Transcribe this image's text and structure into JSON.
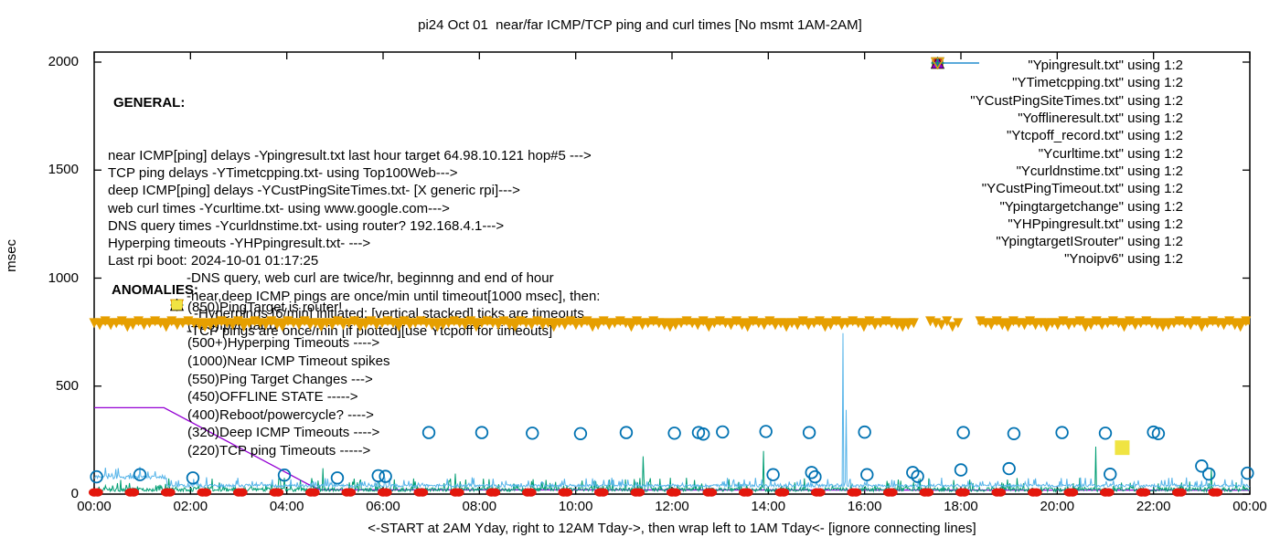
{
  "colors": {
    "purple": "#9400d3",
    "teal": "#009e73",
    "sky": "#56b4e9",
    "orange": "#e69f00",
    "yellow": "#f0e442",
    "blue": "#0072b2",
    "red": "#e3170d",
    "black": "#000000"
  },
  "general": {
    "header": "GENERAL:",
    "lines": [
      {
        "text": "near ICMP[ping] delays -Ypingresult.txt last hour target 64.98.10.121 hop#5 --->",
        "indent": 0
      },
      {
        "text": "TCP ping delays -YTimetcpping.txt- using Top100Web--->",
        "indent": 0
      },
      {
        "text": "deep ICMP[ping] delays -YCustPingSiteTimes.txt- [X generic rpi]--->",
        "indent": 0
      },
      {
        "text": "web curl times -Ycurltime.txt- using www.google.com--->",
        "indent": 0
      },
      {
        "text": "DNS query times -Ycurldnstime.txt- using router? 192.168.4.1--->",
        "indent": 0
      },
      {
        "text": "Hyperping timeouts -YHPpingresult.txt- --->",
        "indent": 0
      },
      {
        "text": "Last rpi boot: 2024-10-01 01:17:25",
        "indent": 0
      },
      {
        "text": "-DNS query, web curl are twice/hr, beginnng and end of hour",
        "indent": 1
      },
      {
        "text": "-near,deep ICMP pings are once/min until timeout[1000 msec], then:",
        "indent": 1
      },
      {
        "text": "-Hyperpings [6/min] initiated; [vertical stacked] ticks are timeouts",
        "indent": 2
      },
      {
        "text": "-TCP pings are once/min [if plotted][use Ytcpoff for timeouts]",
        "indent": 1
      }
    ]
  },
  "anomalies": {
    "header": "ANOMALIES:",
    "rows": [
      {
        "marker": "tridown-open",
        "color": "#56b4e9",
        "text": "(850)PingTarget is router!"
      },
      {
        "marker": "tridown-open",
        "color": "#e69f00",
        "text": "(785)Ipv6 fail'd"
      },
      {
        "marker": "plus",
        "color": "#009e73",
        "text": "(500+)Hyperping Timeouts ---->"
      },
      {
        "marker": "none",
        "color": "#000000",
        "text": "(1000)Near ICMP Timeout spikes"
      },
      {
        "marker": "triup-fill",
        "color": "#9400d3",
        "text": "(550)Ping Target Changes --->"
      },
      {
        "marker": "square-open",
        "color": "#e69f00",
        "text": "(450)OFFLINE STATE ----->"
      },
      {
        "marker": "none",
        "color": "#000000",
        "text": "(400)Reboot/powercycle? ---->"
      },
      {
        "marker": "triup-open",
        "color": "#000000",
        "text": "(320)Deep ICMP Timeouts ---->"
      },
      {
        "marker": "square-fill",
        "color": "#f0e442",
        "text": "(220)TCP ping Timeouts ----->"
      }
    ]
  },
  "legend": {
    "entries": [
      {
        "label": "\"Ypingresult.txt\" using 1:2",
        "marker": "line",
        "color": "#9400d3"
      },
      {
        "label": "\"YTimetcpping.txt\" using 1:2",
        "marker": "line",
        "color": "#009e73"
      },
      {
        "label": "\"YCustPingSiteTimes.txt\" using 1:2",
        "marker": "line",
        "color": "#56b4e9"
      },
      {
        "label": "\"Yofflineresult.txt\" using 1:2",
        "marker": "square-open",
        "color": "#e69f00"
      },
      {
        "label": "\"Ytcpoff_record.txt\" using 1:2",
        "marker": "square-fill",
        "color": "#f0e442"
      },
      {
        "label": "\"Ycurltime.txt\" using 1:2",
        "marker": "circle-open",
        "color": "#0072b2"
      },
      {
        "label": "\"Ycurldnstime.txt\" using 1:2",
        "marker": "circle-fill",
        "color": "#e3170d"
      },
      {
        "label": "\"YCustPingTimeout.txt\" using 1:2",
        "marker": "triup-open",
        "color": "#000000"
      },
      {
        "label": "\"Ypingtargetchange\" using 1:2",
        "marker": "triup-fill",
        "color": "#9400d3"
      },
      {
        "label": "\"YHPpingresult.txt\" using 1:2",
        "marker": "plus",
        "color": "#009e73"
      },
      {
        "label": "\"YpingtargetISrouter\" using 1:2",
        "marker": "tridown-open",
        "color": "#56b4e9"
      },
      {
        "label": "\"Ynoipv6\" using 1:2",
        "marker": "tridown-open",
        "color": "#e69f00"
      }
    ]
  },
  "chart_data": {
    "type": "line",
    "title": "pi24 Oct 01  near/far ICMP/TCP ping and curl times [No msmt 1AM-2AM]",
    "ylabel": "msec",
    "xlabel_note": "<-START at 2AM Yday, right to 12AM Tday->, then wrap left to 1AM Tday<- [ignore connecting lines]",
    "x_ticks": [
      "00:00",
      "02:00",
      "04:00",
      "06:00",
      "08:00",
      "10:00",
      "12:00",
      "14:00",
      "16:00",
      "18:00",
      "20:00",
      "22:00",
      "00:00"
    ],
    "y_ticks": [
      0,
      500,
      1000,
      1500,
      2000
    ],
    "x_range_hours": [
      0,
      24
    ],
    "ylim": [
      0,
      2000
    ],
    "grid": false,
    "legend_position": "top-right-inside",
    "noise_seed": 1234567,
    "series": [
      {
        "name": "Ypingresult.txt",
        "kind": "line",
        "color": "#9400d3",
        "points": [
          [
            0,
            400
          ],
          [
            1.45,
            400
          ],
          [
            4.45,
            45
          ],
          [
            4.7,
            20
          ],
          [
            24,
            18
          ]
        ]
      },
      {
        "name": "YTimetcpping.txt",
        "kind": "noisy-line",
        "color": "#009e73",
        "baseline": 12,
        "noise_amp": 65,
        "spikes": [
          [
            4.75,
            120
          ],
          [
            7.5,
            95
          ],
          [
            11.4,
            175
          ],
          [
            13.9,
            200
          ],
          [
            20.8,
            220
          ],
          [
            23.2,
            120
          ]
        ]
      },
      {
        "name": "YCustPingSiteTimes.txt",
        "kind": "noisy-line",
        "color": "#56b4e9",
        "baseline": 33,
        "noise_amp": 45,
        "elevated_start": {
          "until_hour": 1.5,
          "baseline": 70,
          "noise_amp": 60
        },
        "spikes": [
          [
            15.55,
            745
          ],
          [
            15.62,
            390
          ],
          [
            15.68,
            60
          ]
        ]
      },
      {
        "name": "Ycurltime.txt",
        "kind": "scatter-circle-open",
        "color": "#0072b2",
        "points": [
          [
            0.05,
            80
          ],
          [
            0.95,
            90
          ],
          [
            2.05,
            75
          ],
          [
            3.95,
            88
          ],
          [
            5.05,
            75
          ],
          [
            5.9,
            85
          ],
          [
            6.05,
            82
          ],
          [
            6.95,
            285
          ],
          [
            8.05,
            285
          ],
          [
            9.1,
            282
          ],
          [
            10.1,
            280
          ],
          [
            11.05,
            285
          ],
          [
            12.05,
            282
          ],
          [
            12.55,
            285
          ],
          [
            12.65,
            278
          ],
          [
            13.05,
            288
          ],
          [
            13.95,
            290
          ],
          [
            14.1,
            90
          ],
          [
            14.85,
            285
          ],
          [
            14.9,
            100
          ],
          [
            14.97,
            80
          ],
          [
            16.0,
            287
          ],
          [
            16.05,
            90
          ],
          [
            17.0,
            100
          ],
          [
            17.1,
            82
          ],
          [
            18.0,
            112
          ],
          [
            18.05,
            285
          ],
          [
            19.0,
            118
          ],
          [
            19.1,
            280
          ],
          [
            20.1,
            285
          ],
          [
            21.0,
            282
          ],
          [
            21.1,
            92
          ],
          [
            22.0,
            287
          ],
          [
            22.1,
            280
          ],
          [
            23.0,
            130
          ],
          [
            23.15,
            93
          ],
          [
            23.95,
            97
          ]
        ]
      },
      {
        "name": "Ycurldnstime.txt",
        "kind": "scatter-dot-pairs",
        "color": "#e3170d",
        "value": 8,
        "interval_hours": 0.75,
        "pair_offset_hours": 0.07
      },
      {
        "name": "Ytcpoff_record.txt",
        "kind": "scatter-square-fill",
        "color": "#f0e442",
        "points": [
          [
            21.35,
            215
          ]
        ]
      },
      {
        "name": "Ynoipv6",
        "kind": "marker-band",
        "color": "#e69f00",
        "value": 785,
        "x_start": 0,
        "x_end": 24,
        "gaps": [
          [
            17.05,
            17.35
          ],
          [
            18.0,
            18.35
          ]
        ]
      }
    ]
  }
}
